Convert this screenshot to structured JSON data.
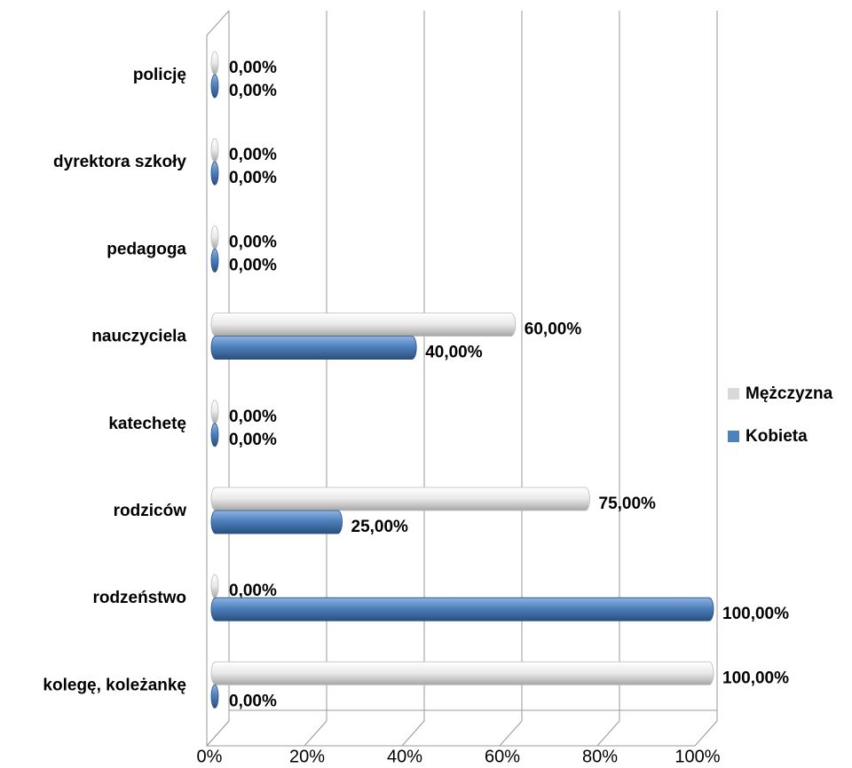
{
  "chart_data": {
    "type": "bar",
    "orientation": "horizontal",
    "categories": [
      "policję",
      "dyrektora szkoły",
      "pedagoga",
      "nauczyciela",
      "katechetę",
      "rodziców",
      "rodzeństwo",
      "kolegę, koleżankę"
    ],
    "series": [
      {
        "name": "Mężczyzna",
        "color": "#d9d9d9",
        "values": [
          0,
          0,
          0,
          60,
          0,
          75,
          0,
          100
        ],
        "value_labels": [
          "0,00%",
          "0,00%",
          "0,00%",
          "60,00%",
          "0,00%",
          "75,00%",
          "0,00%",
          "100,00%"
        ]
      },
      {
        "name": "Kobieta",
        "color": "#4f81bd",
        "values": [
          0,
          0,
          0,
          40,
          0,
          25,
          100,
          0
        ],
        "value_labels": [
          "0,00%",
          "0,00%",
          "0,00%",
          "40,00%",
          "0,00%",
          "25,00%",
          "100,00%",
          "0,00%"
        ]
      }
    ],
    "xlim": [
      0,
      100
    ],
    "xticks": [
      {
        "value": 0,
        "label": "0%"
      },
      {
        "value": 20,
        "label": "20%"
      },
      {
        "value": 40,
        "label": "40%"
      },
      {
        "value": 60,
        "label": "60%"
      },
      {
        "value": 80,
        "label": "80%"
      },
      {
        "value": 100,
        "label": "100%"
      }
    ],
    "grid": true,
    "legend": "right"
  }
}
